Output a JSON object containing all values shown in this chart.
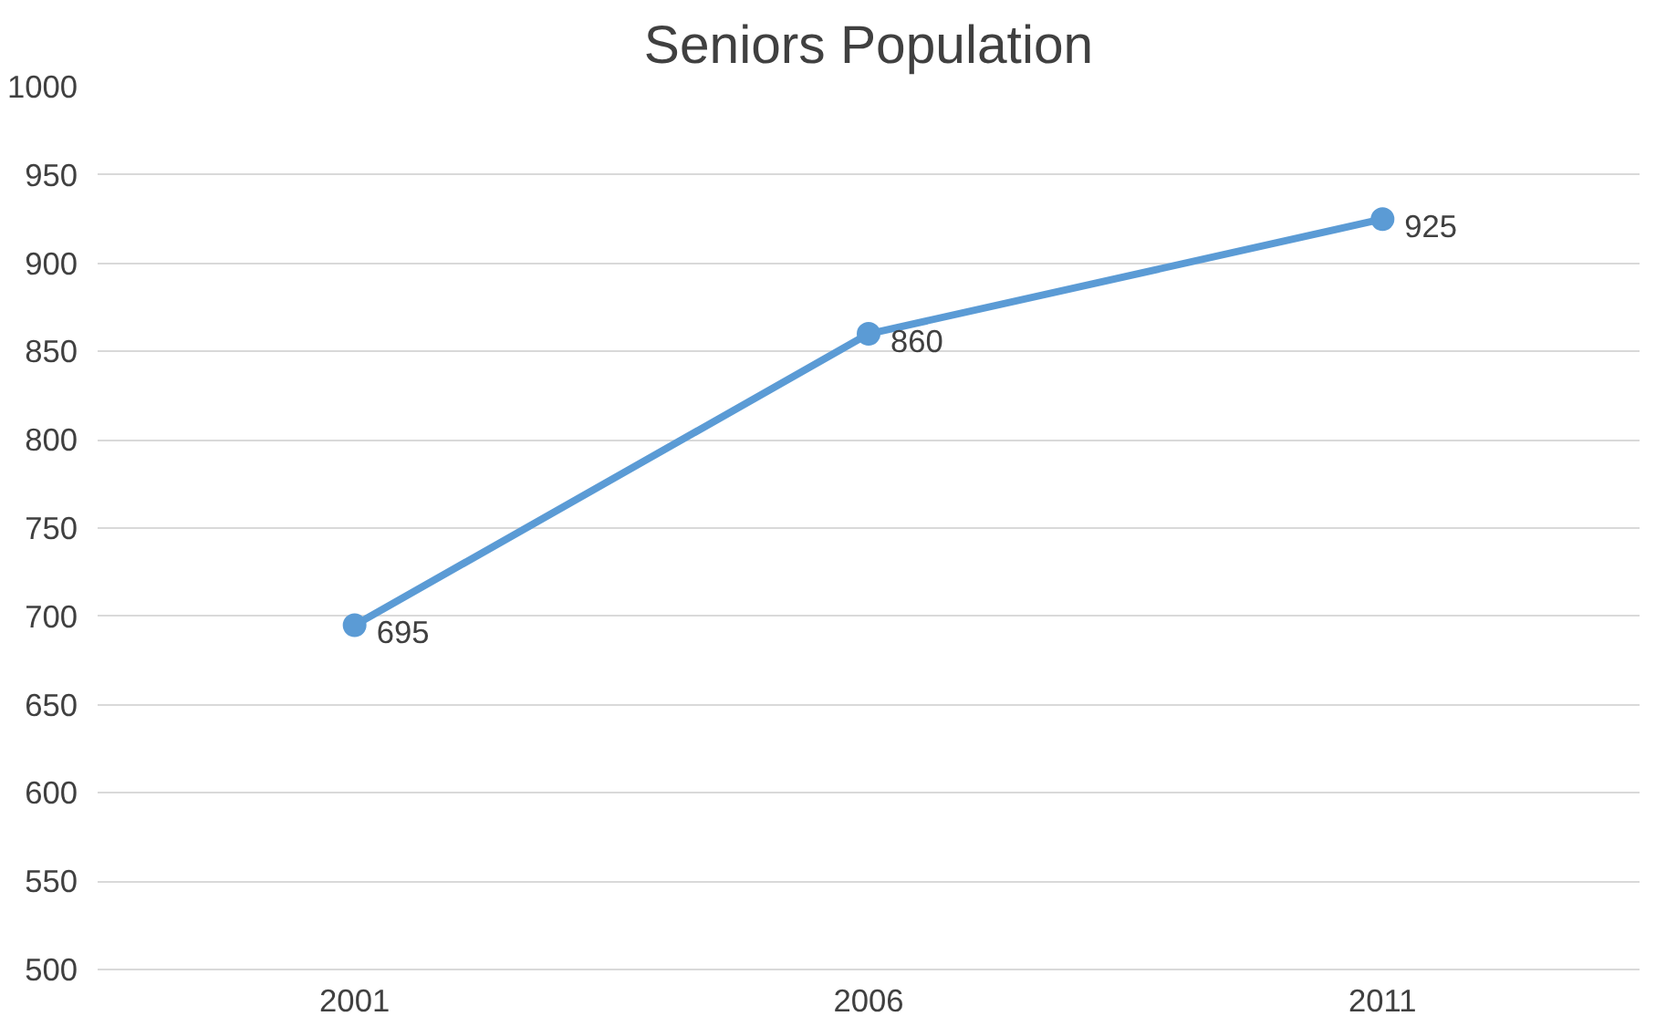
{
  "chart_data": {
    "type": "line",
    "title": "Seniors Population",
    "categories": [
      "2001",
      "2006",
      "2011"
    ],
    "series": [
      {
        "color": "#5b9bd5",
        "values": [
          695,
          860,
          925
        ]
      }
    ],
    "ylim": [
      500,
      1000
    ],
    "yticks": [
      500,
      550,
      600,
      650,
      700,
      750,
      800,
      850,
      900,
      950,
      1000
    ],
    "grid": "y",
    "marker": "circle",
    "data_labels": true
  }
}
